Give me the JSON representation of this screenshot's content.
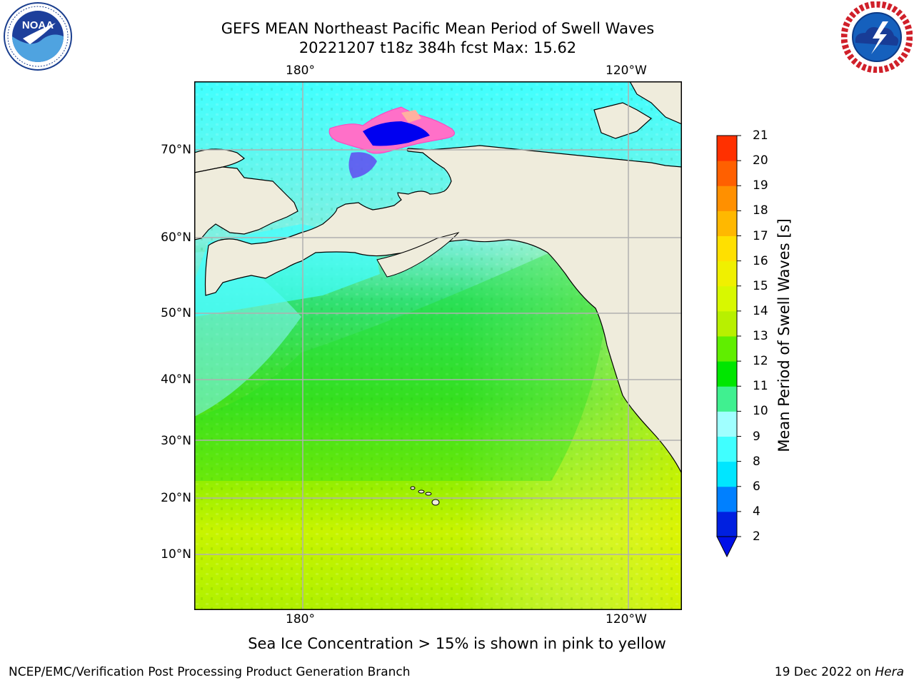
{
  "title": {
    "line1": "GEFS MEAN Northeast Pacific Mean Period of Swell Waves",
    "line2": "20221207 t18z 384h fcst   Max: 15.62"
  },
  "logos": {
    "left": {
      "name": "NOAA",
      "ring_text": "NATIONAL OCEANIC AND ATMOSPHERIC ADMINISTRATION · U.S. DEPARTMENT OF COMMERCE"
    },
    "right": {
      "name": "NATIONAL WEATHER SERVICE"
    }
  },
  "map": {
    "lon_labels": [
      "180°",
      "120°W"
    ],
    "lat_labels": [
      "70°N",
      "60°N",
      "50°N",
      "40°N",
      "30°N",
      "20°N",
      "10°N"
    ],
    "land_color": "#efecdc",
    "grid_color": "#b0b0b0"
  },
  "colorbar": {
    "label": "Mean Period of Swell Waves [s]",
    "ticks": [
      "2",
      "4",
      "6",
      "8",
      "9",
      "10",
      "11",
      "12",
      "13",
      "14",
      "15",
      "16",
      "17",
      "18",
      "19",
      "20",
      "21"
    ],
    "colors": [
      "#0020e0",
      "#0080ff",
      "#00e6ff",
      "#40ffff",
      "#a0ffff",
      "#40f090",
      "#00e600",
      "#60ee00",
      "#b8f000",
      "#d8f800",
      "#f0f000",
      "#ffe000",
      "#ffb800",
      "#ff9000",
      "#ff6000",
      "#ff3000",
      "#ff0000"
    ],
    "extend_color": "#0010e8"
  },
  "caption": "Sea Ice Concentration > 15% is shown in pink to yellow",
  "footer": {
    "left": "NCEP/EMC/Verification Post Processing Product Generation Branch",
    "date": "19 Dec 2022 on ",
    "machine": "Hera"
  }
}
